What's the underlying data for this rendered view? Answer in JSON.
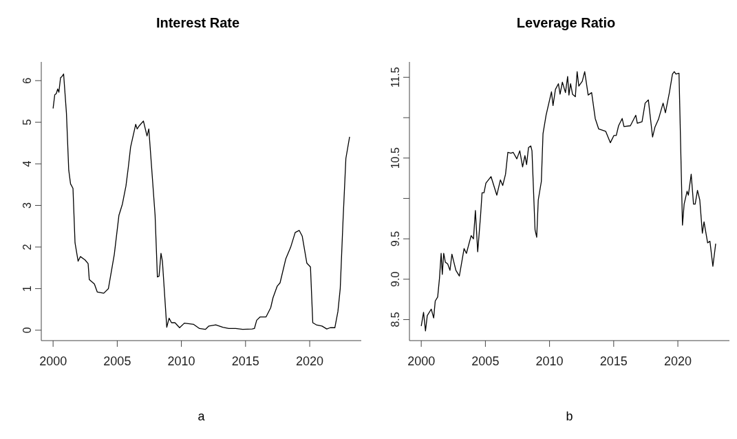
{
  "chart_data": [
    {
      "type": "line",
      "title": "Interest Rate",
      "annotations": [
        "a"
      ],
      "color": "#000000",
      "marker": "none",
      "grid": false,
      "xlim": [
        1999.08,
        2024.02
      ],
      "xticks": [
        2000,
        2005,
        2010,
        2015,
        2020
      ],
      "ylim": [
        -0.25,
        6.45
      ],
      "yticks": [
        0,
        1,
        2,
        3,
        4,
        5,
        6
      ],
      "x": [
        2000.0,
        2000.13,
        2000.25,
        2000.36,
        2000.45,
        2000.58,
        2000.69,
        2000.82,
        2001.04,
        2001.22,
        2001.36,
        2001.55,
        2001.71,
        2001.95,
        2002.13,
        2002.49,
        2002.73,
        2002.82,
        2003.22,
        2003.44,
        2003.95,
        2004.31,
        2004.77,
        2005.13,
        2005.4,
        2005.68,
        2005.86,
        2006.04,
        2006.44,
        2006.55,
        2006.73,
        2007.04,
        2007.32,
        2007.46,
        2007.68,
        2007.95,
        2008.13,
        2008.26,
        2008.41,
        2008.52,
        2008.86,
        2009.04,
        2009.23,
        2009.5,
        2009.86,
        2010.23,
        2010.96,
        2011.41,
        2011.87,
        2012.14,
        2012.68,
        2013.23,
        2013.69,
        2014.23,
        2014.78,
        2015.51,
        2015.69,
        2015.87,
        2016.14,
        2016.6,
        2016.96,
        2017.14,
        2017.47,
        2017.69,
        2018.14,
        2018.51,
        2018.87,
        2019.18,
        2019.42,
        2019.78,
        2020.06,
        2020.24,
        2020.51,
        2020.96,
        2021.33,
        2021.6,
        2021.96,
        2022.2,
        2022.38,
        2022.6,
        2022.82,
        2023.11
      ],
      "values": [
        5.33,
        5.66,
        5.69,
        5.8,
        5.72,
        6.07,
        6.1,
        6.16,
        5.22,
        3.85,
        3.52,
        3.41,
        2.1,
        1.66,
        1.77,
        1.69,
        1.6,
        1.22,
        1.11,
        0.92,
        0.89,
        1.0,
        1.82,
        2.76,
        3.03,
        3.47,
        3.91,
        4.4,
        4.95,
        4.84,
        4.92,
        5.03,
        4.67,
        4.84,
        3.91,
        2.76,
        1.28,
        1.3,
        1.85,
        1.66,
        0.07,
        0.29,
        0.18,
        0.18,
        0.06,
        0.17,
        0.14,
        0.04,
        0.02,
        0.1,
        0.13,
        0.07,
        0.04,
        0.04,
        0.02,
        0.03,
        0.04,
        0.24,
        0.32,
        0.32,
        0.54,
        0.78,
        1.06,
        1.14,
        1.72,
        1.99,
        2.35,
        2.4,
        2.26,
        1.61,
        1.52,
        0.18,
        0.13,
        0.1,
        0.03,
        0.06,
        0.06,
        0.45,
        1.0,
        2.65,
        4.13,
        4.65
      ]
    },
    {
      "type": "line",
      "title": "Leverage Ratio",
      "annotations": [
        "b"
      ],
      "color": "#000000",
      "marker": "none",
      "grid": false,
      "xlim": [
        1999.08,
        2024.02
      ],
      "xticks": [
        2000,
        2005,
        2010,
        2015,
        2020
      ],
      "ylim": [
        8.24,
        11.69
      ],
      "yticks": [
        8.5,
        {
          "value": 9,
          "label": "9.0"
        },
        9.5,
        {
          "value": 10,
          "label": null
        },
        10.5,
        {
          "value": 11,
          "label": null
        },
        11.5
      ],
      "x": [
        2000.0,
        2000.18,
        2000.33,
        2000.47,
        2000.78,
        2000.97,
        2001.09,
        2001.28,
        2001.42,
        2001.55,
        2001.64,
        2001.75,
        2001.88,
        2002.06,
        2002.24,
        2002.39,
        2002.7,
        2002.97,
        2003.34,
        2003.52,
        2003.89,
        2004.07,
        2004.22,
        2004.4,
        2004.62,
        2004.74,
        2004.89,
        2005.04,
        2005.44,
        2005.89,
        2006.17,
        2006.35,
        2006.57,
        2006.75,
        2006.99,
        2007.17,
        2007.45,
        2007.68,
        2007.9,
        2008.08,
        2008.21,
        2008.36,
        2008.54,
        2008.63,
        2008.87,
        2009.0,
        2009.12,
        2009.36,
        2009.49,
        2009.73,
        2010.15,
        2010.27,
        2010.46,
        2010.69,
        2010.82,
        2011.0,
        2011.24,
        2011.41,
        2011.51,
        2011.64,
        2011.79,
        2012.01,
        2012.15,
        2012.28,
        2012.55,
        2012.74,
        2013.01,
        2013.28,
        2013.56,
        2013.83,
        2014.38,
        2014.74,
        2015.02,
        2015.2,
        2015.38,
        2015.66,
        2015.8,
        2016.3,
        2016.72,
        2016.84,
        2017.21,
        2017.45,
        2017.7,
        2018.03,
        2018.21,
        2018.49,
        2018.85,
        2019.03,
        2019.34,
        2019.58,
        2019.72,
        2019.85,
        2020.09,
        2020.36,
        2020.49,
        2020.72,
        2020.82,
        2021.04,
        2021.22,
        2021.35,
        2021.53,
        2021.71,
        2021.91,
        2022.04,
        2022.32,
        2022.5,
        2022.73,
        2022.95
      ],
      "values": [
        8.42,
        8.59,
        8.36,
        8.55,
        8.63,
        8.52,
        8.73,
        8.78,
        9.01,
        9.32,
        9.06,
        9.32,
        9.21,
        9.19,
        9.11,
        9.31,
        9.11,
        9.04,
        9.38,
        9.32,
        9.54,
        9.5,
        9.85,
        9.34,
        9.78,
        10.07,
        10.07,
        10.19,
        10.27,
        10.04,
        10.23,
        10.16,
        10.3,
        10.57,
        10.56,
        10.57,
        10.49,
        10.59,
        10.39,
        10.53,
        10.42,
        10.63,
        10.65,
        10.59,
        9.61,
        9.52,
        9.98,
        10.21,
        10.8,
        11.03,
        11.32,
        11.15,
        11.35,
        11.42,
        11.29,
        11.44,
        11.31,
        11.51,
        11.28,
        11.42,
        11.29,
        11.26,
        11.57,
        11.39,
        11.45,
        11.57,
        11.28,
        11.31,
        10.99,
        10.86,
        10.83,
        10.69,
        10.78,
        10.78,
        10.9,
        10.99,
        10.89,
        10.9,
        11.03,
        10.93,
        10.95,
        11.18,
        11.22,
        10.76,
        10.88,
        10.98,
        11.18,
        11.06,
        11.31,
        11.54,
        11.57,
        11.54,
        11.55,
        9.67,
        9.93,
        10.09,
        10.04,
        10.3,
        9.93,
        9.93,
        10.1,
        9.98,
        9.57,
        9.71,
        9.45,
        9.47,
        9.16,
        9.44
      ]
    }
  ]
}
